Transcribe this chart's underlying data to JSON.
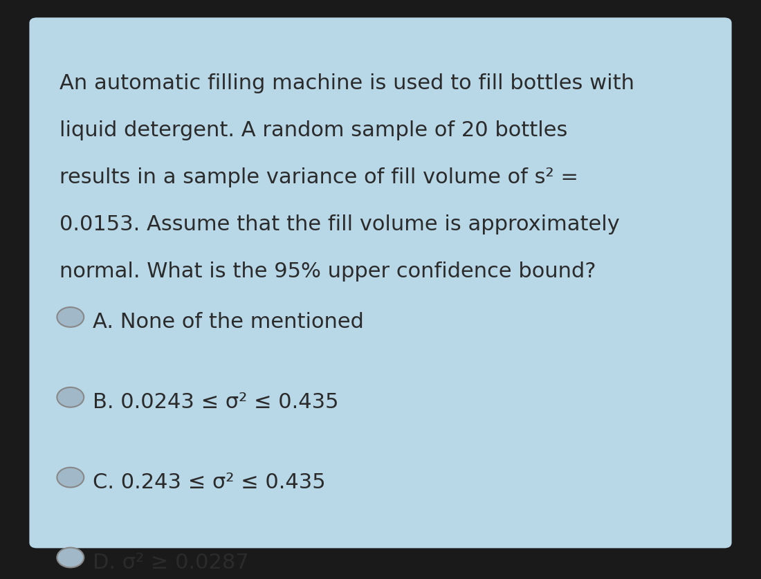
{
  "background_color": "#b8d8e8",
  "outer_bg_color": "#1a1a1a",
  "question_text": [
    "An automatic filling machine is used to fill bottles with",
    "liquid detergent. A random sample of 20 bottles",
    "results in a sample variance of fill volume of s² =",
    "0.0153. Assume that the fill volume is approximately",
    "normal. What is the 95% upper confidence bound?"
  ],
  "options": [
    "A. None of the mentioned",
    "B. 0.0243 ≤ σ² ≤ 0.435",
    "C. 0.243 ≤ σ² ≤ 0.435",
    "D. σ² ≥ 0.0287"
  ],
  "text_color": "#2b2b2b",
  "question_fontsize": 22,
  "option_fontsize": 22,
  "radio_color": "#a0b8c8",
  "radio_border_color": "#888888"
}
